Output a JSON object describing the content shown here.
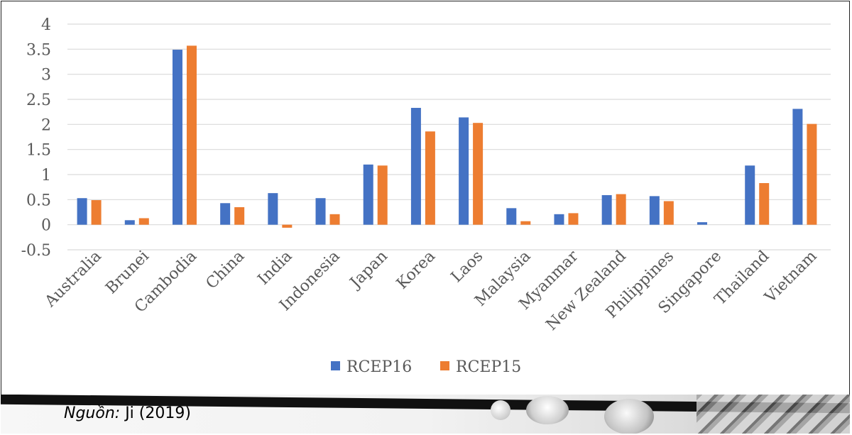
{
  "chart_data": {
    "type": "bar",
    "categories": [
      "Australia",
      "Brunei",
      "Cambodia",
      "China",
      "India",
      "Indonesia",
      "Japan",
      "Korea",
      "Laos",
      "Malaysia",
      "Myanmar",
      "New Zealand",
      "Philippines",
      "Singapore",
      "Thailand",
      "Vietnam"
    ],
    "series": [
      {
        "name": "RCEP16",
        "color": "#4472C4",
        "values": [
          0.53,
          0.09,
          3.49,
          0.43,
          0.63,
          0.53,
          1.2,
          2.33,
          2.14,
          0.33,
          0.21,
          0.59,
          0.57,
          0.05,
          1.18,
          2.31
        ]
      },
      {
        "name": "RCEP15",
        "color": "#ED7D31",
        "values": [
          0.49,
          0.13,
          3.57,
          0.35,
          -0.06,
          0.21,
          1.18,
          1.86,
          2.03,
          0.07,
          0.23,
          0.61,
          0.47,
          0.0,
          0.83,
          2.01
        ]
      }
    ],
    "y_ticks": [
      "4",
      "3.5",
      "3",
      "2.5",
      "2",
      "1.5",
      "1",
      "0.5",
      "0",
      "-0.5"
    ],
    "ylim": [
      -0.5,
      4
    ],
    "grid": true,
    "legend_position": "bottom-center"
  },
  "source": {
    "label": "Nguồn:",
    "text": "Ji (2019)"
  }
}
